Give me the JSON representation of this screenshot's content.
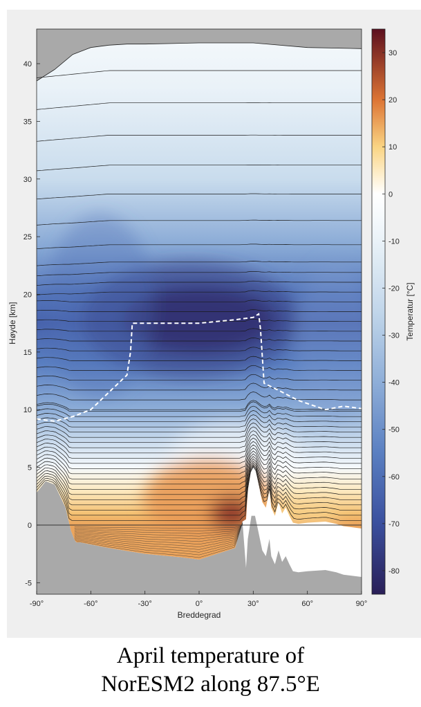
{
  "caption": {
    "line1": "April temperature of",
    "line2": "NorESM2 along 87.5°E"
  },
  "chart_data": {
    "type": "heatmap",
    "title": "",
    "xlabel": "Breddegrad",
    "ylabel": "Høyde [km]",
    "colorbar_label": "Temperatur [°C]",
    "xlim": [
      -90,
      90
    ],
    "ylim": [
      -6,
      43
    ],
    "colorbar_range": [
      -85,
      35
    ],
    "x_ticks": [
      -90,
      -60,
      -30,
      0,
      30,
      60,
      90
    ],
    "x_tick_labels": [
      "-90°",
      "-60°",
      "-30°",
      "0°",
      "30°",
      "60°",
      "90°"
    ],
    "y_ticks": [
      -5,
      0,
      5,
      10,
      15,
      20,
      25,
      30,
      35,
      40
    ],
    "y_tick_labels": [
      "-5",
      "0",
      "5",
      "10",
      "15",
      "20",
      "25",
      "30",
      "35",
      "40"
    ],
    "colorbar_ticks": [
      30,
      20,
      10,
      0,
      -10,
      -20,
      -30,
      -40,
      -50,
      -60,
      -70,
      -80
    ],
    "colorbar_tick_labels": [
      "30",
      "20",
      "10",
      "0",
      "-10",
      "-20",
      "-30",
      "-40",
      "-50",
      "-60",
      "-70",
      "-80"
    ],
    "colormap": {
      "stops": [
        -85,
        -70,
        -55,
        -40,
        -25,
        -10,
        0,
        10,
        20,
        35
      ],
      "colors": [
        "#2a1f57",
        "#3a4f9e",
        "#5a7fc1",
        "#8eaed8",
        "#c1d6ea",
        "#eaf2f8",
        "#ffffff",
        "#fad483",
        "#dc7434",
        "#5c0f1f"
      ]
    },
    "series": [
      {
        "name": "dashed tropopause",
        "style": "dashed",
        "color": "#ffffff",
        "x": [
          -90,
          -80,
          -70,
          -60,
          -50,
          -40,
          -38,
          -37,
          -20,
          0,
          20,
          30,
          33,
          34,
          36,
          45,
          55,
          70,
          80,
          90
        ],
        "y": [
          9.2,
          9.0,
          9.4,
          10.0,
          11.5,
          13.0,
          15.0,
          17.5,
          17.5,
          17.5,
          17.8,
          18.0,
          18.3,
          17.0,
          12.3,
          11.6,
          10.8,
          10.0,
          10.3,
          10.1
        ]
      },
      {
        "name": "surface topography",
        "x": [
          -90,
          -85,
          -80,
          -77,
          -74,
          -71,
          -69,
          -68,
          -66,
          -50,
          -30,
          -10,
          0,
          10,
          20,
          24,
          26,
          27,
          29,
          31,
          33,
          35,
          37,
          39,
          40,
          42,
          44,
          46,
          48,
          50,
          52,
          55,
          60,
          70,
          76,
          80,
          90
        ],
        "y": [
          2.8,
          3.8,
          3.5,
          2.5,
          1.5,
          -0.5,
          -1.3,
          -1.5,
          -1.5,
          -2.0,
          -2.5,
          -2.8,
          -3.0,
          -2.5,
          -2.0,
          0.3,
          0.5,
          3.0,
          5.0,
          5.0,
          3.5,
          2.0,
          1.5,
          3.0,
          1.5,
          0.8,
          2.0,
          1.0,
          1.5,
          0.8,
          0.2,
          0.1,
          0.2,
          0.3,
          0.1,
          -0.1,
          -0.3
        ]
      },
      {
        "name": "model top",
        "x": [
          -90,
          -80,
          -70,
          -60,
          -50,
          -40,
          -30,
          0,
          30,
          60,
          90
        ],
        "y": [
          38.5,
          39.5,
          40.8,
          41.4,
          41.6,
          41.7,
          41.7,
          41.8,
          41.8,
          41.4,
          41.3
        ]
      }
    ],
    "annotations": {
      "contour_lines": "model level lines",
      "zero_line": "y = 0"
    }
  }
}
